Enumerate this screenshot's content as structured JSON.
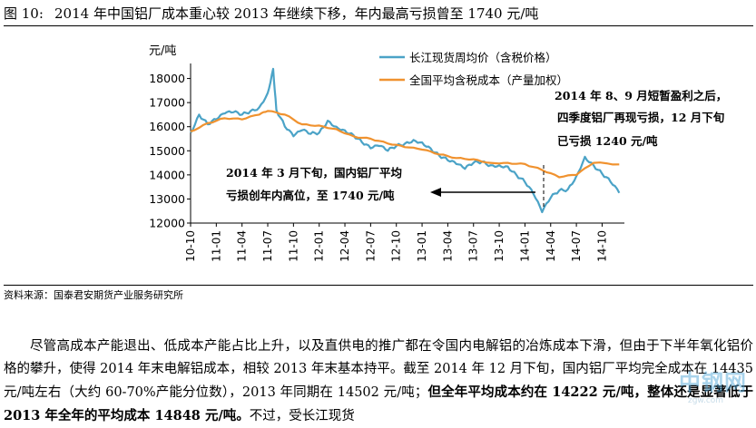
{
  "figure": {
    "number": "图 10:",
    "title": "2014 年中国铝厂成本重心较 2013 年继续下移，年内最高亏损曾至 1740 元/吨"
  },
  "chart_data": {
    "type": "line",
    "ylabel": "元/吨",
    "ylim": [
      12000,
      19000
    ],
    "yticks": [
      12000,
      13000,
      14000,
      15000,
      16000,
      17000,
      18000
    ],
    "x_range": [
      "2010-10",
      "2014-12"
    ],
    "x_tick_labels": [
      "10-10",
      "11-01",
      "11-04",
      "11-07",
      "11-10",
      "12-01",
      "12-04",
      "12-07",
      "12-10",
      "13-01",
      "13-04",
      "13-07",
      "13-10",
      "14-01",
      "14-04",
      "14-07",
      "14-10"
    ],
    "grid": false,
    "legend_position": "top-right",
    "series": [
      {
        "name": "长江现货周均价（含税价格）",
        "color": "#4ba3c7",
        "points": [
          [
            "2010-10",
            15750
          ],
          [
            "2010-11",
            16500
          ],
          [
            "2010-12",
            16100
          ],
          [
            "2011-01",
            16300
          ],
          [
            "2011-02",
            16550
          ],
          [
            "2011-03",
            16600
          ],
          [
            "2011-04",
            16500
          ],
          [
            "2011-05",
            16650
          ],
          [
            "2011-06",
            16800
          ],
          [
            "2011-07",
            17400
          ],
          [
            "2011-07-20",
            18400
          ],
          [
            "2011-08",
            16700
          ],
          [
            "2011-09",
            16000
          ],
          [
            "2011-10",
            15600
          ],
          [
            "2011-11",
            15850
          ],
          [
            "2011-12",
            15700
          ],
          [
            "2012-01",
            15750
          ],
          [
            "2012-02",
            16250
          ],
          [
            "2012-03",
            16000
          ],
          [
            "2012-04",
            15850
          ],
          [
            "2012-05",
            15650
          ],
          [
            "2012-06",
            15350
          ],
          [
            "2012-07",
            15100
          ],
          [
            "2012-08",
            15200
          ],
          [
            "2012-09",
            15000
          ],
          [
            "2012-10",
            15200
          ],
          [
            "2012-11",
            15300
          ],
          [
            "2012-12",
            15450
          ],
          [
            "2013-01",
            15350
          ],
          [
            "2013-02",
            15100
          ],
          [
            "2013-03",
            14800
          ],
          [
            "2013-04",
            14600
          ],
          [
            "2013-05",
            14450
          ],
          [
            "2013-06",
            14250
          ],
          [
            "2013-07",
            14500
          ],
          [
            "2013-08",
            14550
          ],
          [
            "2013-09",
            14400
          ],
          [
            "2013-10",
            14400
          ],
          [
            "2013-11",
            14350
          ],
          [
            "2013-12",
            14000
          ],
          [
            "2014-01",
            13700
          ],
          [
            "2014-02",
            13200
          ],
          [
            "2014-03",
            12450
          ],
          [
            "2014-04",
            13050
          ],
          [
            "2014-05",
            13350
          ],
          [
            "2014-06",
            13400
          ],
          [
            "2014-07",
            13950
          ],
          [
            "2014-08",
            14750
          ],
          [
            "2014-09",
            14400
          ],
          [
            "2014-10",
            14050
          ],
          [
            "2014-11",
            13700
          ],
          [
            "2014-12",
            13250
          ]
        ]
      },
      {
        "name": "全国平均含税成本（产量加权）",
        "color": "#f0922f",
        "points": [
          [
            "2010-10",
            15800
          ],
          [
            "2010-12",
            16150
          ],
          [
            "2011-02",
            16350
          ],
          [
            "2011-04",
            16300
          ],
          [
            "2011-06",
            16500
          ],
          [
            "2011-07",
            16650
          ],
          [
            "2011-09",
            16500
          ],
          [
            "2011-11",
            16100
          ],
          [
            "2012-01",
            16050
          ],
          [
            "2012-03",
            15900
          ],
          [
            "2012-05",
            15600
          ],
          [
            "2012-07",
            15500
          ],
          [
            "2012-09",
            15300
          ],
          [
            "2012-11",
            15150
          ],
          [
            "2013-01",
            15050
          ],
          [
            "2013-03",
            14850
          ],
          [
            "2013-05",
            14700
          ],
          [
            "2013-07",
            14650
          ],
          [
            "2013-09",
            14500
          ],
          [
            "2013-11",
            14500
          ],
          [
            "2014-01",
            14450
          ],
          [
            "2014-03",
            14200
          ],
          [
            "2014-05",
            13900
          ],
          [
            "2014-07",
            14000
          ],
          [
            "2014-09",
            14500
          ],
          [
            "2014-12",
            14435
          ]
        ]
      }
    ],
    "annotations": {
      "left_line1": "2014 年 3 月下旬，国内铝厂平均",
      "left_line2": "亏损创年内高位，至 1740 元/吨",
      "right_line1": "2014 年 8、9 月短暂盈利之后，",
      "right_line2": "四季度铝厂再现亏损，12 月下旬",
      "right_line3": "已亏损 1240 元/吨"
    }
  },
  "source": "资料来源：国泰君安期货产业服务研究所",
  "paragraph": {
    "part1": "尽管高成本产能退出、低成本产能占比上升，以及直供电的推广都在令国内电解铝的冶炼成本下滑，但由于下半年氧化铝价格的攀升，使得 2014 年末电解铝成本，相较 2013 年末基本持平。截至 2014 年 12 月下旬，国内铝厂平均完全成本在 14435 元/吨左右（大约 60-70%产能分位数），2013 年同期在 14502 元/吨；",
    "bold": "但全年平均成本约在 14222 元/吨，整体还是显著低于 2013 年全年的平均成本 14848 元/吨。",
    "part2": "不过，受长江现货"
  },
  "watermark": {
    "text": "中钢网",
    "url": "zgw.com"
  }
}
